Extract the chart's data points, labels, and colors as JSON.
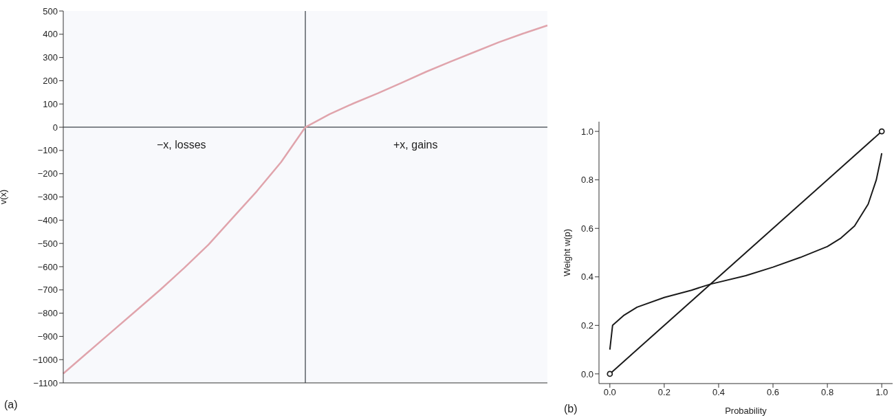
{
  "chart_data": [
    {
      "type": "line",
      "ylabel": "v(x)",
      "ylim": [
        -1100,
        500
      ],
      "yticks": [
        {
          "value": -1100,
          "label": "−1100"
        },
        {
          "value": -1000,
          "label": "−1000"
        },
        {
          "value": -900,
          "label": "−900"
        },
        {
          "value": -800,
          "label": "−800"
        },
        {
          "value": -700,
          "label": "−700"
        },
        {
          "value": -600,
          "label": "−600"
        },
        {
          "value": -500,
          "label": "−500"
        },
        {
          "value": -400,
          "label": "−400"
        },
        {
          "value": -300,
          "label": "−300"
        },
        {
          "value": -200,
          "label": "−200"
        },
        {
          "value": -100,
          "label": "−100"
        },
        0,
        100,
        200,
        300,
        400,
        500
      ],
      "tick_labels": "y",
      "categories": [
        null,
        null,
        null,
        null,
        null,
        null,
        null,
        null,
        null,
        null,
        null,
        null,
        null,
        null,
        null,
        null,
        null,
        null,
        null,
        null,
        null
      ],
      "series": [
        {
          "color": "#e0a4ac",
          "values": [
            -1060,
            -970,
            -880,
            -790,
            -700,
            -605,
            -505,
            -390,
            -275,
            -150,
            0,
            56,
            103,
            146,
            192,
            239,
            282,
            324,
            366,
            403,
            438
          ]
        }
      ],
      "ref_lines": [
        {
          "axis": "x",
          "value": null,
          "color": "#5a5f66"
        },
        {
          "axis": "y",
          "value": 0,
          "color": "#5a5f66"
        }
      ],
      "annotations": [
        "−x, losses",
        "+x, gains",
        "(a)"
      ]
    },
    {
      "type": "line",
      "xlabel": "Probability",
      "ylabel": "Weight w(p)",
      "xlim": [
        -0.04,
        1.04
      ],
      "xticks": [
        {
          "value": 0,
          "label": "0.0"
        },
        0.2,
        0.4,
        0.6,
        0.8,
        {
          "value": 1,
          "label": "1.0"
        }
      ],
      "ylim": [
        -0.04,
        1.04
      ],
      "yticks": [
        {
          "value": 0,
          "label": "0.0"
        },
        0.2,
        0.4,
        0.6,
        0.8,
        {
          "value": 1,
          "label": "1.0"
        }
      ],
      "series": [
        {
          "color": "#1a1a1a",
          "marker": "circle",
          "x": [
            0,
            1
          ],
          "values": [
            0,
            1
          ]
        },
        {
          "color": "#1a1a1a",
          "marker": "none",
          "x": [
            0,
            0.01,
            0.05,
            0.1,
            0.2,
            0.3,
            0.37,
            0.5,
            0.6,
            0.7,
            0.8,
            0.85,
            0.9,
            0.95,
            0.98,
            0.995,
            1.0
          ],
          "values": [
            0.1,
            0.2,
            0.24,
            0.275,
            0.315,
            0.345,
            0.37,
            0.405,
            0.44,
            0.48,
            0.525,
            0.56,
            0.61,
            0.7,
            0.8,
            0.88,
            0.91
          ]
        }
      ],
      "annotations": [
        "(b)"
      ]
    }
  ]
}
